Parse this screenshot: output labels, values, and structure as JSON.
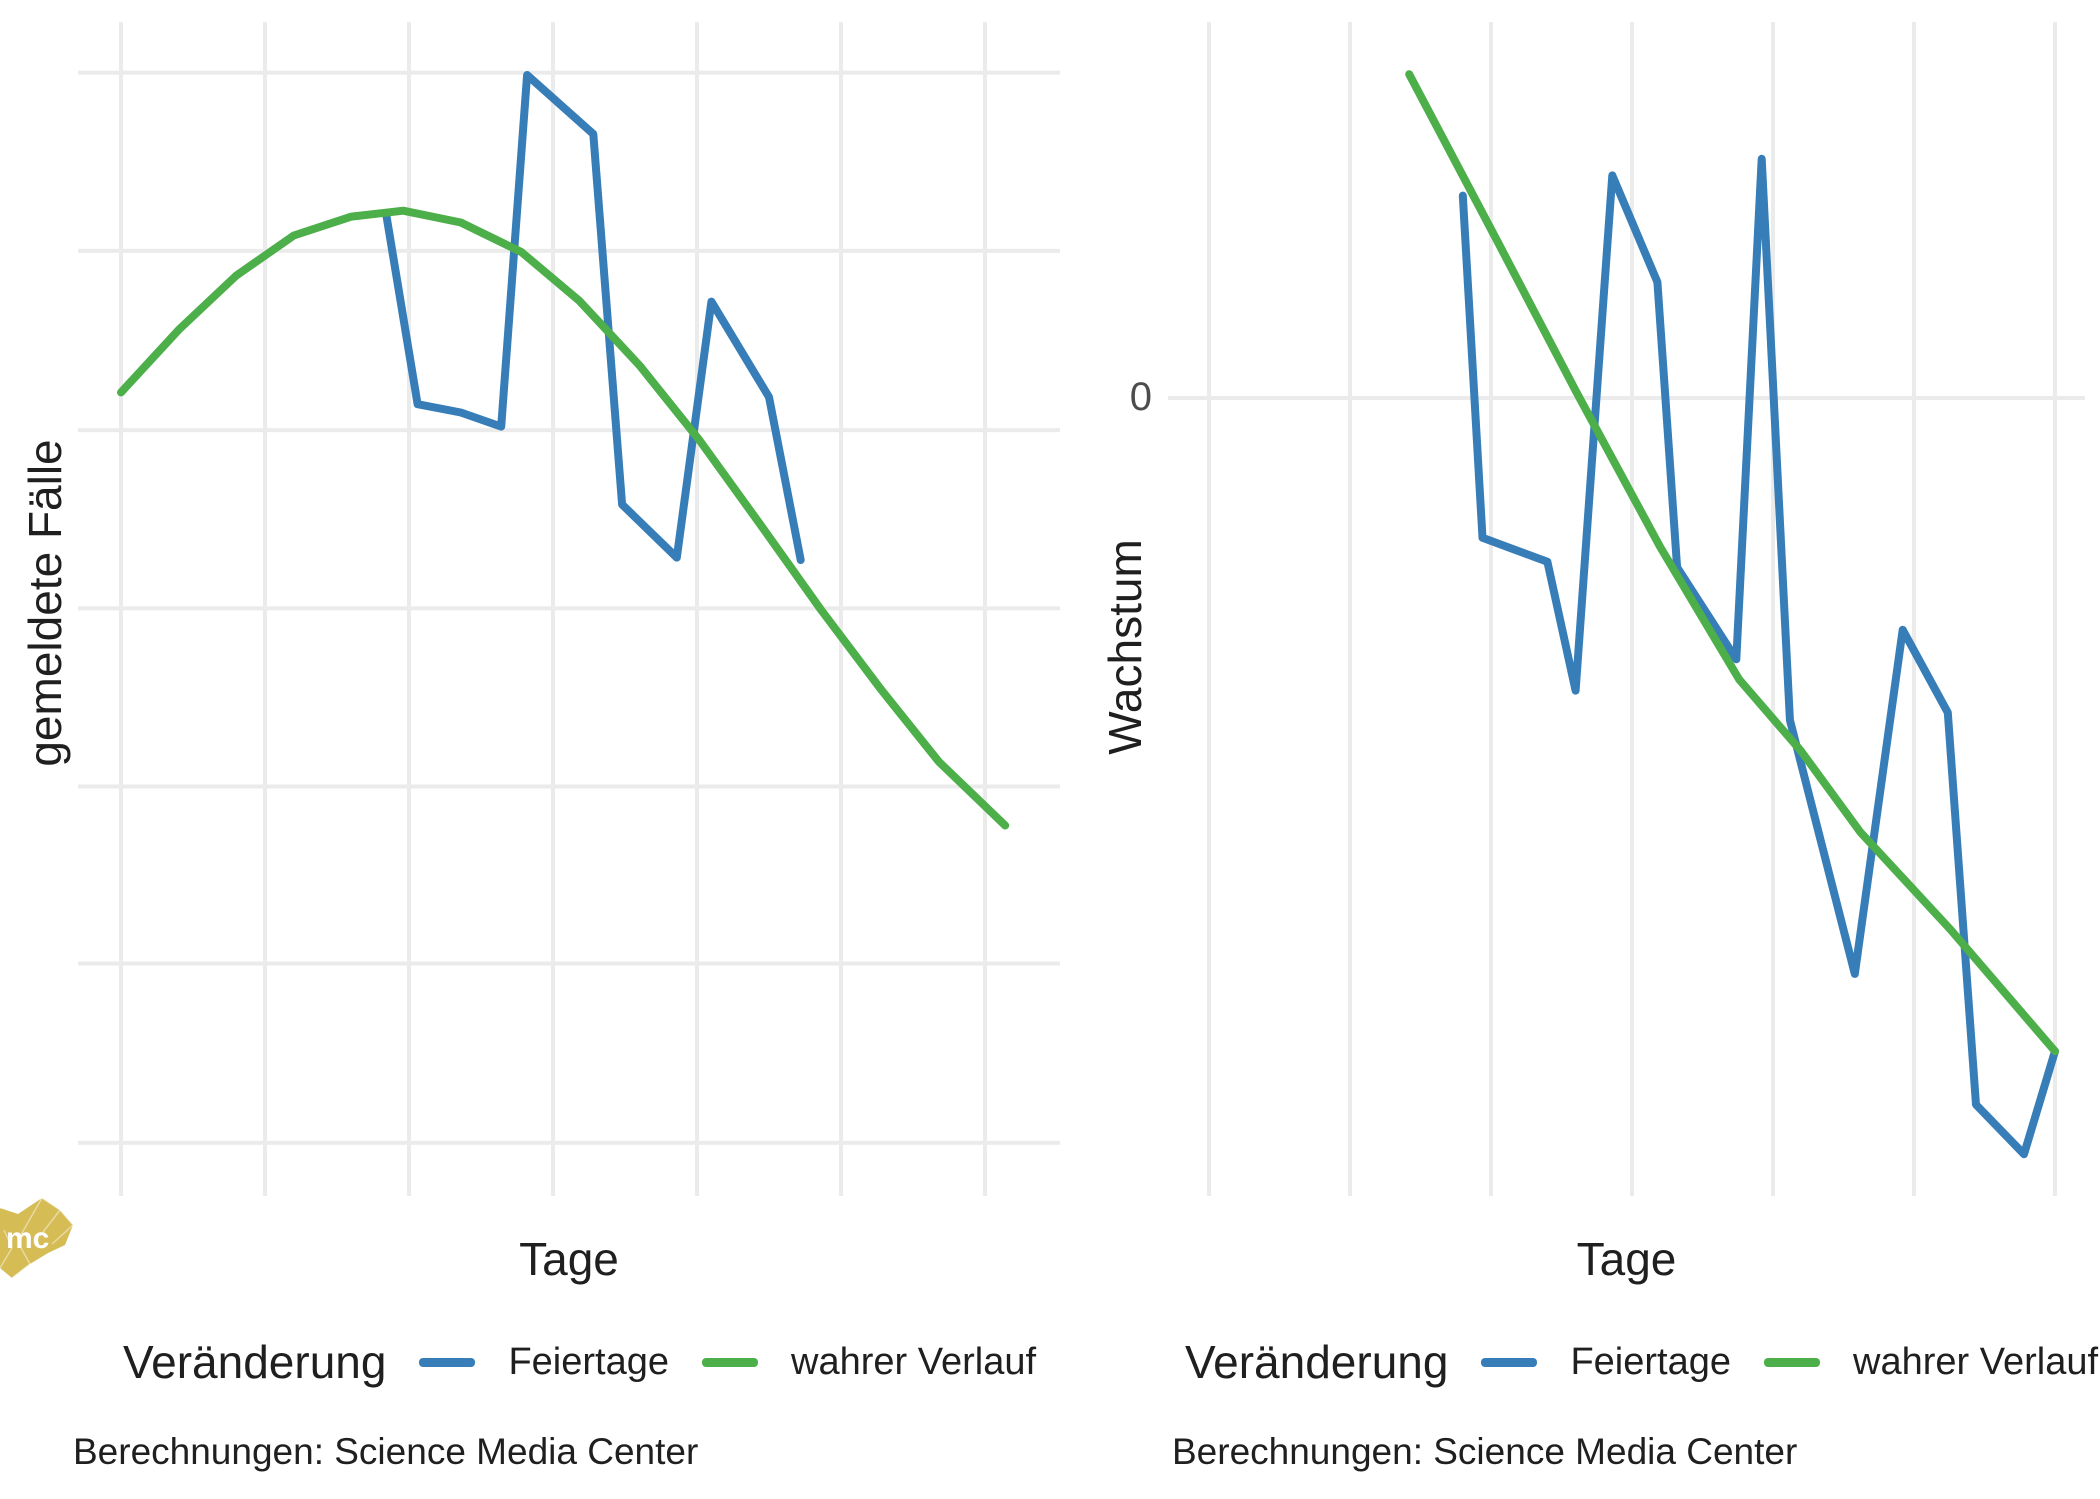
{
  "colors": {
    "blue": "#377EB8",
    "green": "#4DAF4A",
    "gridline": "#EBEBEB",
    "axis_text": "#1F1F1F",
    "tick_text": "#4D4D4D",
    "background": "#FFFFFF",
    "logo_gold": "#D5BC55"
  },
  "branding": {
    "logo_text": "mc"
  },
  "left_chart": {
    "y_axis_title": "gemeldete Fälle",
    "x_axis_title": "Tage",
    "legend": {
      "title": "Veränderung",
      "items": [
        {
          "label": "Feiertage",
          "color": "blue"
        },
        {
          "label": "wahrer Verlauf",
          "color": "green"
        }
      ]
    },
    "caption": "Berechnungen: Science Media Center"
  },
  "right_chart": {
    "y_axis_title": "Wachstum",
    "x_axis_title": "Tage",
    "y_tick_label": "0",
    "legend": {
      "title": "Veränderung",
      "items": [
        {
          "label": "Feiertage",
          "color": "blue"
        },
        {
          "label": "wahrer Verlauf",
          "color": "green"
        }
      ]
    },
    "caption": "Berechnungen: Science Media Center"
  },
  "chart_data": [
    {
      "type": "line",
      "panel": "left",
      "title": "",
      "xlabel": "Tage",
      "ylabel": "gemeldete Fälle",
      "x_units": "days (axis unlabeled; vertical gridlines every 5 days)",
      "y_units": "reported cases, arbitrary index 0-100 (axis unlabeled)",
      "xlim": [
        -1.5,
        32.6
      ],
      "ylim": [
        0,
        100
      ],
      "grid": "light gray major gridlines only",
      "legend_position": "bottom",
      "x_gridlines": [
        0,
        5,
        10,
        15,
        20,
        25,
        30
      ],
      "y_gridlines": [
        4.5,
        19.7,
        34.7,
        49.8,
        64.9,
        80.1,
        95.2
      ],
      "series": [
        {
          "name": "Feiertage",
          "color": "blue",
          "points": [
            [
              9.2,
              83.3
            ],
            [
              10.3,
              67.1
            ],
            [
              11.8,
              66.4
            ],
            [
              13.2,
              65.2
            ],
            [
              14.1,
              95.0
            ],
            [
              16.4,
              90.0
            ],
            [
              17.4,
              58.6
            ],
            [
              19.3,
              54.1
            ],
            [
              20.5,
              75.8
            ],
            [
              22.5,
              67.7
            ],
            [
              23.6,
              53.9
            ]
          ]
        },
        {
          "name": "wahrer Verlauf",
          "color": "green",
          "points": [
            [
              0,
              68.1
            ],
            [
              2,
              73.4
            ],
            [
              4,
              78.0
            ],
            [
              6,
              81.4
            ],
            [
              8,
              83.0
            ],
            [
              9.8,
              83.5
            ],
            [
              11.8,
              82.5
            ],
            [
              13.9,
              80.0
            ],
            [
              15.9,
              75.9
            ],
            [
              18,
              70.4
            ],
            [
              20.1,
              64.0
            ],
            [
              22.2,
              56.9
            ],
            [
              24.3,
              49.7
            ],
            [
              26.4,
              42.9
            ],
            [
              28.4,
              36.8
            ],
            [
              30.7,
              31.4
            ]
          ]
        }
      ]
    },
    {
      "type": "line",
      "panel": "right",
      "title": "",
      "xlabel": "Tage",
      "ylabel": "Wachstum",
      "x_units": "days (axis unlabeled; vertical gridlines every 5 days)",
      "y_units": "growth rate, arbitrary units (only the 0 line is labeled)",
      "xlim": [
        -1.5,
        31.1
      ],
      "ylim": [
        -4.34,
        2.08
      ],
      "grid": "light gray vertical gridlines; single horizontal gridline at 0",
      "legend_position": "bottom",
      "x_gridlines": [
        0,
        5,
        10,
        15,
        20,
        25,
        30
      ],
      "y_gridlines": [
        0
      ],
      "y_tick_labels": [
        "0"
      ],
      "series": [
        {
          "name": "Feiertage",
          "color": "blue",
          "points": [
            [
              9.0,
              1.1
            ],
            [
              9.7,
              -0.76
            ],
            [
              12.0,
              -0.89
            ],
            [
              13.0,
              -1.59
            ],
            [
              14.3,
              1.21
            ],
            [
              15.9,
              0.63
            ],
            [
              16.6,
              -0.92
            ],
            [
              18.7,
              -1.42
            ],
            [
              19.6,
              1.3
            ],
            [
              20.6,
              -1.75
            ],
            [
              22.9,
              -3.13
            ],
            [
              24.6,
              -1.26
            ],
            [
              26.2,
              -1.71
            ],
            [
              27.2,
              -3.84
            ],
            [
              28.9,
              -4.11
            ],
            [
              30.0,
              -3.55
            ]
          ]
        },
        {
          "name": "wahrer Verlauf",
          "color": "green",
          "points": [
            [
              7.1,
              1.76
            ],
            [
              10.3,
              0.83
            ],
            [
              13.0,
              0.04
            ],
            [
              16.0,
              -0.81
            ],
            [
              18.8,
              -1.53
            ],
            [
              21.0,
              -1.92
            ],
            [
              23.1,
              -2.36
            ],
            [
              26.3,
              -2.89
            ],
            [
              30.0,
              -3.55
            ]
          ]
        }
      ]
    }
  ]
}
